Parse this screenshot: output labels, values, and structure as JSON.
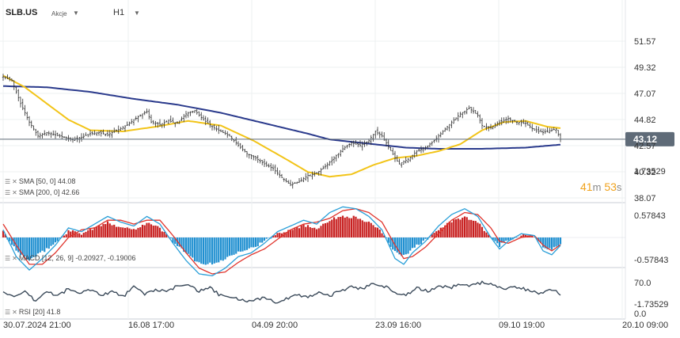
{
  "header": {
    "symbol": "SLB.US",
    "type": "Akcje",
    "timeframe": "H1"
  },
  "indicators": {
    "sma50": "SMA [50, 0] 44.08",
    "sma200": "SMA [200, 0] 42.66",
    "macd": "MACD [12, 26, 9] -0.20927, -0.19006",
    "rsi": "RSI [20] 41.8"
  },
  "countdown": {
    "minutes": "41",
    "m": "m",
    "seconds": "53",
    "s": "s"
  },
  "colors": {
    "sma50": "#f2c418",
    "sma200": "#2a3a8c",
    "price_tag": "#5f6b78",
    "macd_line": "#2a9fd8",
    "signal_line": "#e0342c",
    "hist_pos": "#c82020",
    "hist_neg": "#1f8fd0",
    "rsi_line": "#3b4a5a",
    "countdown": "#f0a21c"
  },
  "chart_data": [
    {
      "type": "line",
      "subtype": "ohlc",
      "ylim": [
        38.07,
        52.2
      ],
      "y_ticks": [
        "51.57",
        "49.32",
        "47.07",
        "44.82",
        "42.57",
        "40.32",
        "38.07"
      ],
      "y_tick_values": [
        51.57,
        49.32,
        47.07,
        44.82,
        42.57,
        40.32,
        38.07
      ],
      "x_tick_labels": [
        "30.07.2024 21:00",
        "16.08 17:00",
        "04.09 20:00",
        "23.09 16:00",
        "09.10 19:00",
        "20.10 09:00"
      ],
      "last_price": "43.12",
      "price_anchors": [
        [
          0,
          48.5
        ],
        [
          4,
          48.2
        ],
        [
          8,
          46.2
        ],
        [
          12,
          44.6
        ],
        [
          16,
          43.4
        ],
        [
          20,
          43.7
        ],
        [
          24,
          43.5
        ],
        [
          28,
          43.3
        ],
        [
          32,
          43.1
        ],
        [
          36,
          43.3
        ],
        [
          40,
          43.6
        ],
        [
          44,
          43.7
        ],
        [
          48,
          43.5
        ],
        [
          52,
          43.9
        ],
        [
          56,
          44.2
        ],
        [
          60,
          44.8
        ],
        [
          64,
          45.3
        ],
        [
          66,
          45.5
        ],
        [
          68,
          44.6
        ],
        [
          72,
          44.4
        ],
        [
          76,
          44.7
        ],
        [
          80,
          44.5
        ],
        [
          84,
          45.3
        ],
        [
          88,
          45.6
        ],
        [
          92,
          44.8
        ],
        [
          96,
          44.2
        ],
        [
          100,
          43.8
        ],
        [
          104,
          43.4
        ],
        [
          108,
          42.6
        ],
        [
          112,
          41.9
        ],
        [
          116,
          41.5
        ],
        [
          120,
          41.0
        ],
        [
          124,
          40.6
        ],
        [
          128,
          39.8
        ],
        [
          132,
          39.2
        ],
        [
          136,
          39.5
        ],
        [
          140,
          40.0
        ],
        [
          144,
          40.2
        ],
        [
          148,
          40.8
        ],
        [
          152,
          41.5
        ],
        [
          156,
          42.3
        ],
        [
          160,
          42.8
        ],
        [
          164,
          42.6
        ],
        [
          168,
          43.0
        ],
        [
          171,
          43.8
        ],
        [
          174,
          43.4
        ],
        [
          176,
          42.8
        ],
        [
          180,
          41.5
        ],
        [
          182,
          41.0
        ],
        [
          186,
          41.4
        ],
        [
          190,
          42.1
        ],
        [
          194,
          42.4
        ],
        [
          198,
          43.0
        ],
        [
          202,
          43.8
        ],
        [
          206,
          44.6
        ],
        [
          210,
          45.3
        ],
        [
          214,
          45.8
        ],
        [
          218,
          45.2
        ],
        [
          220,
          44.3
        ],
        [
          224,
          44.1
        ],
        [
          228,
          44.6
        ],
        [
          232,
          44.9
        ],
        [
          236,
          44.6
        ],
        [
          240,
          44.5
        ],
        [
          244,
          43.9
        ],
        [
          248,
          43.7
        ],
        [
          252,
          43.9
        ],
        [
          254,
          44.0
        ],
        [
          256,
          43.12
        ]
      ],
      "series": [
        {
          "name": "SMA [50, 0]",
          "color": "#f2c418",
          "points": [
            [
              0,
              48.6
            ],
            [
              10,
              47.6
            ],
            [
              20,
              46.2
            ],
            [
              30,
              44.8
            ],
            [
              40,
              43.9
            ],
            [
              55,
              43.8
            ],
            [
              70,
              44.2
            ],
            [
              85,
              44.7
            ],
            [
              100,
              44.3
            ],
            [
              115,
              43.0
            ],
            [
              130,
              41.4
            ],
            [
              140,
              40.3
            ],
            [
              150,
              39.9
            ],
            [
              160,
              40.1
            ],
            [
              170,
              40.9
            ],
            [
              180,
              41.5
            ],
            [
              190,
              41.7
            ],
            [
              200,
              42.1
            ],
            [
              210,
              42.7
            ],
            [
              220,
              43.9
            ],
            [
              230,
              44.6
            ],
            [
              240,
              44.7
            ],
            [
              250,
              44.2
            ],
            [
              256,
              44.08
            ]
          ]
        },
        {
          "name": "SMA [200, 0]",
          "color": "#2a3a8c",
          "points": [
            [
              0,
              47.7
            ],
            [
              20,
              47.6
            ],
            [
              40,
              47.2
            ],
            [
              60,
              46.6
            ],
            [
              80,
              46.1
            ],
            [
              100,
              45.4
            ],
            [
              120,
              44.5
            ],
            [
              140,
              43.6
            ],
            [
              150,
              43.1
            ],
            [
              160,
              42.9
            ],
            [
              170,
              42.7
            ],
            [
              185,
              42.4
            ],
            [
              200,
              42.3
            ],
            [
              220,
              42.3
            ],
            [
              240,
              42.4
            ],
            [
              256,
              42.66
            ]
          ]
        }
      ]
    },
    {
      "type": "bar",
      "name": "MACD [12, 26, 9]",
      "ylim": [
        -1.9,
        1.9
      ],
      "y_ticks": [
        "1.73529",
        "0.57843",
        "-0.57843",
        "-1.73529"
      ],
      "y_tick_values": [
        1.73529,
        0.57843,
        -0.57843,
        -1.73529
      ],
      "macd_anchors": [
        [
          0,
          0.2
        ],
        [
          6,
          -0.5
        ],
        [
          12,
          -0.85
        ],
        [
          18,
          -0.55
        ],
        [
          24,
          -0.2
        ],
        [
          30,
          0.25
        ],
        [
          36,
          0.15
        ],
        [
          42,
          0.35
        ],
        [
          48,
          0.55
        ],
        [
          54,
          0.4
        ],
        [
          60,
          0.3
        ],
        [
          66,
          0.55
        ],
        [
          72,
          0.35
        ],
        [
          78,
          -0.15
        ],
        [
          84,
          -0.6
        ],
        [
          90,
          -0.95
        ],
        [
          96,
          -1.0
        ],
        [
          102,
          -0.8
        ],
        [
          108,
          -0.5
        ],
        [
          114,
          -0.4
        ],
        [
          120,
          -0.15
        ],
        [
          126,
          0.15
        ],
        [
          132,
          0.3
        ],
        [
          138,
          0.45
        ],
        [
          144,
          0.35
        ],
        [
          150,
          0.65
        ],
        [
          156,
          0.8
        ],
        [
          162,
          0.75
        ],
        [
          168,
          0.55
        ],
        [
          174,
          0.2
        ],
        [
          180,
          -0.55
        ],
        [
          184,
          -0.7
        ],
        [
          188,
          -0.4
        ],
        [
          194,
          -0.1
        ],
        [
          200,
          0.3
        ],
        [
          206,
          0.6
        ],
        [
          212,
          0.75
        ],
        [
          218,
          0.55
        ],
        [
          224,
          0.0
        ],
        [
          228,
          -0.3
        ],
        [
          232,
          -0.1
        ],
        [
          238,
          0.1
        ],
        [
          244,
          0.05
        ],
        [
          248,
          -0.35
        ],
        [
          252,
          -0.45
        ],
        [
          256,
          -0.21
        ]
      ],
      "signal_anchors": [
        [
          0,
          0.35
        ],
        [
          6,
          -0.2
        ],
        [
          12,
          -0.7
        ],
        [
          18,
          -0.7
        ],
        [
          24,
          -0.4
        ],
        [
          30,
          0.0
        ],
        [
          36,
          0.2
        ],
        [
          42,
          0.25
        ],
        [
          48,
          0.45
        ],
        [
          54,
          0.45
        ],
        [
          60,
          0.35
        ],
        [
          66,
          0.45
        ],
        [
          72,
          0.45
        ],
        [
          78,
          0.05
        ],
        [
          84,
          -0.4
        ],
        [
          90,
          -0.8
        ],
        [
          96,
          -0.95
        ],
        [
          102,
          -0.9
        ],
        [
          108,
          -0.65
        ],
        [
          114,
          -0.45
        ],
        [
          120,
          -0.3
        ],
        [
          126,
          -0.05
        ],
        [
          132,
          0.2
        ],
        [
          138,
          0.35
        ],
        [
          144,
          0.4
        ],
        [
          150,
          0.5
        ],
        [
          156,
          0.7
        ],
        [
          162,
          0.75
        ],
        [
          168,
          0.65
        ],
        [
          174,
          0.4
        ],
        [
          180,
          -0.2
        ],
        [
          184,
          -0.55
        ],
        [
          188,
          -0.5
        ],
        [
          194,
          -0.25
        ],
        [
          200,
          0.1
        ],
        [
          206,
          0.45
        ],
        [
          212,
          0.65
        ],
        [
          218,
          0.6
        ],
        [
          224,
          0.25
        ],
        [
          228,
          -0.1
        ],
        [
          232,
          -0.15
        ],
        [
          238,
          0.0
        ],
        [
          244,
          0.05
        ],
        [
          248,
          -0.2
        ],
        [
          252,
          -0.35
        ],
        [
          256,
          -0.19
        ]
      ]
    },
    {
      "type": "line",
      "name": "RSI [20]",
      "ylim": [
        0,
        100
      ],
      "y_ticks": [
        "70.0",
        "0.0"
      ],
      "y_tick_values": [
        70.0,
        0.0
      ],
      "rsi_anchors": [
        [
          0,
          52
        ],
        [
          5,
          35
        ],
        [
          10,
          48
        ],
        [
          15,
          28
        ],
        [
          20,
          50
        ],
        [
          25,
          40
        ],
        [
          30,
          56
        ],
        [
          35,
          45
        ],
        [
          40,
          55
        ],
        [
          45,
          42
        ],
        [
          50,
          50
        ],
        [
          55,
          38
        ],
        [
          60,
          60
        ],
        [
          65,
          44
        ],
        [
          70,
          55
        ],
        [
          75,
          48
        ],
        [
          80,
          62
        ],
        [
          85,
          68
        ],
        [
          90,
          50
        ],
        [
          95,
          58
        ],
        [
          100,
          40
        ],
        [
          105,
          36
        ],
        [
          110,
          30
        ],
        [
          115,
          27
        ],
        [
          120,
          38
        ],
        [
          125,
          25
        ],
        [
          130,
          32
        ],
        [
          135,
          42
        ],
        [
          140,
          38
        ],
        [
          145,
          48
        ],
        [
          150,
          40
        ],
        [
          155,
          52
        ],
        [
          160,
          60
        ],
        [
          165,
          56
        ],
        [
          170,
          70
        ],
        [
          175,
          62
        ],
        [
          180,
          48
        ],
        [
          185,
          42
        ],
        [
          190,
          57
        ],
        [
          195,
          50
        ],
        [
          200,
          62
        ],
        [
          205,
          58
        ],
        [
          210,
          67
        ],
        [
          215,
          63
        ],
        [
          220,
          70
        ],
        [
          225,
          65
        ],
        [
          230,
          57
        ],
        [
          235,
          60
        ],
        [
          240,
          55
        ],
        [
          245,
          46
        ],
        [
          250,
          52
        ],
        [
          254,
          55
        ],
        [
          256,
          41.8
        ]
      ]
    }
  ]
}
